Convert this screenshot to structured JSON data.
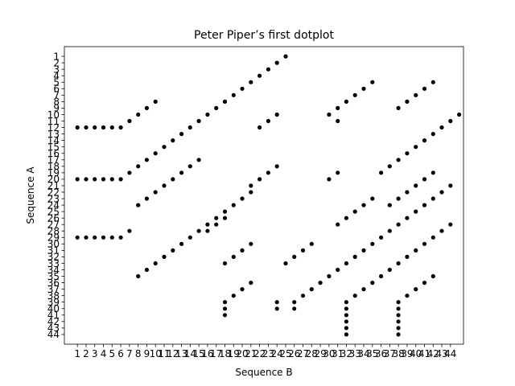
{
  "chart_data": {
    "type": "scatter",
    "title": "Peter Piper’s first dotplot",
    "xlabel": "Sequence B",
    "ylabel": "Sequence A",
    "x_ticks": [
      "1",
      "2",
      "3",
      "4",
      "5",
      "6",
      "7",
      "8",
      "9",
      "10",
      "11",
      "12",
      "13",
      "14",
      "15",
      "16",
      "17",
      "18",
      "19",
      "20",
      "21",
      "22",
      "23",
      "24",
      "25",
      "26",
      "27",
      "28",
      "29",
      "30",
      "31",
      "32",
      "33",
      "34",
      "35",
      "36",
      "37",
      "38",
      "39",
      "40",
      "41",
      "42",
      "43",
      "44"
    ],
    "y_ticks": [
      "1",
      "2",
      "3",
      "4",
      "5",
      "6",
      "7",
      "8",
      "9",
      "10",
      "11",
      "12",
      "13",
      "14",
      "15",
      "16",
      "17",
      "18",
      "19",
      "20",
      "21",
      "22",
      "23",
      "24",
      "25",
      "26",
      "27",
      "28",
      "29",
      "30",
      "31",
      "32",
      "33",
      "34",
      "35",
      "36",
      "37",
      "38",
      "39",
      "40",
      "41",
      "42",
      "43",
      "44"
    ],
    "xlim": [
      -0.5,
      45.5
    ],
    "ylim": [
      45.5,
      -0.5
    ],
    "y_inverted": true,
    "grid": false,
    "marker_color": "#000000",
    "points": [
      [
        1,
        12
      ],
      [
        2,
        12
      ],
      [
        3,
        12
      ],
      [
        4,
        12
      ],
      [
        5,
        12
      ],
      [
        6,
        12
      ],
      [
        7,
        11
      ],
      [
        8,
        10
      ],
      [
        9,
        9
      ],
      [
        10,
        8
      ],
      [
        1,
        20
      ],
      [
        2,
        20
      ],
      [
        3,
        20
      ],
      [
        4,
        20
      ],
      [
        5,
        20
      ],
      [
        6,
        20
      ],
      [
        7,
        19
      ],
      [
        8,
        18
      ],
      [
        9,
        17
      ],
      [
        10,
        16
      ],
      [
        11,
        15
      ],
      [
        12,
        14
      ],
      [
        13,
        13
      ],
      [
        14,
        12
      ],
      [
        15,
        11
      ],
      [
        16,
        10
      ],
      [
        17,
        9
      ],
      [
        18,
        8
      ],
      [
        19,
        7
      ],
      [
        20,
        6
      ],
      [
        21,
        5
      ],
      [
        22,
        4
      ],
      [
        23,
        3
      ],
      [
        24,
        2
      ],
      [
        25,
        1
      ],
      [
        1,
        29
      ],
      [
        2,
        29
      ],
      [
        3,
        29
      ],
      [
        4,
        29
      ],
      [
        5,
        29
      ],
      [
        6,
        29
      ],
      [
        7,
        28
      ],
      [
        8,
        24
      ],
      [
        9,
        23
      ],
      [
        10,
        22
      ],
      [
        11,
        21
      ],
      [
        12,
        20
      ],
      [
        13,
        19
      ],
      [
        14,
        18
      ],
      [
        15,
        17
      ],
      [
        8,
        35
      ],
      [
        9,
        34
      ],
      [
        10,
        33
      ],
      [
        11,
        32
      ],
      [
        12,
        31
      ],
      [
        13,
        30
      ],
      [
        14,
        29
      ],
      [
        15,
        28
      ],
      [
        16,
        27
      ],
      [
        17,
        26
      ],
      [
        18,
        25
      ],
      [
        19,
        24
      ],
      [
        20,
        23
      ],
      [
        21,
        22
      ],
      [
        21,
        21
      ],
      [
        22,
        20
      ],
      [
        23,
        19
      ],
      [
        24,
        18
      ],
      [
        16,
        28
      ],
      [
        17,
        27
      ],
      [
        18,
        26
      ],
      [
        18,
        33
      ],
      [
        19,
        32
      ],
      [
        20,
        31
      ],
      [
        21,
        30
      ],
      [
        18,
        39
      ],
      [
        18,
        40
      ],
      [
        18,
        41
      ],
      [
        19,
        38
      ],
      [
        20,
        37
      ],
      [
        21,
        36
      ],
      [
        22,
        12
      ],
      [
        23,
        11
      ],
      [
        24,
        10
      ],
      [
        24,
        39
      ],
      [
        24,
        40
      ],
      [
        25,
        33
      ],
      [
        26,
        32
      ],
      [
        27,
        31
      ],
      [
        28,
        30
      ],
      [
        26,
        39
      ],
      [
        26,
        40
      ],
      [
        27,
        38
      ],
      [
        28,
        37
      ],
      [
        29,
        36
      ],
      [
        30,
        35
      ],
      [
        31,
        34
      ],
      [
        32,
        33
      ],
      [
        33,
        32
      ],
      [
        34,
        31
      ],
      [
        35,
        30
      ],
      [
        36,
        29
      ],
      [
        37,
        28
      ],
      [
        38,
        27
      ],
      [
        39,
        26
      ],
      [
        40,
        25
      ],
      [
        41,
        24
      ],
      [
        42,
        23
      ],
      [
        43,
        22
      ],
      [
        44,
        21
      ],
      [
        30,
        10
      ],
      [
        31,
        9
      ],
      [
        31,
        11
      ],
      [
        32,
        8
      ],
      [
        33,
        7
      ],
      [
        34,
        6
      ],
      [
        35,
        5
      ],
      [
        30,
        20
      ],
      [
        31,
        19
      ],
      [
        31,
        27
      ],
      [
        32,
        26
      ],
      [
        33,
        25
      ],
      [
        34,
        24
      ],
      [
        35,
        23
      ],
      [
        32,
        39
      ],
      [
        32,
        40
      ],
      [
        32,
        41
      ],
      [
        32,
        42
      ],
      [
        32,
        43
      ],
      [
        32,
        44
      ],
      [
        33,
        38
      ],
      [
        34,
        37
      ],
      [
        35,
        36
      ],
      [
        36,
        35
      ],
      [
        37,
        34
      ],
      [
        38,
        33
      ],
      [
        39,
        32
      ],
      [
        40,
        31
      ],
      [
        41,
        30
      ],
      [
        42,
        29
      ],
      [
        43,
        28
      ],
      [
        44,
        27
      ],
      [
        36,
        19
      ],
      [
        37,
        18
      ],
      [
        38,
        17
      ],
      [
        39,
        16
      ],
      [
        40,
        15
      ],
      [
        41,
        14
      ],
      [
        42,
        13
      ],
      [
        43,
        12
      ],
      [
        44,
        11
      ],
      [
        45,
        10
      ],
      [
        37,
        24
      ],
      [
        38,
        23
      ],
      [
        39,
        22
      ],
      [
        40,
        21
      ],
      [
        41,
        20
      ],
      [
        42,
        19
      ],
      [
        38,
        9
      ],
      [
        39,
        8
      ],
      [
        40,
        7
      ],
      [
        41,
        6
      ],
      [
        42,
        5
      ],
      [
        38,
        39
      ],
      [
        38,
        40
      ],
      [
        38,
        41
      ],
      [
        38,
        42
      ],
      [
        38,
        43
      ],
      [
        38,
        44
      ],
      [
        39,
        38
      ],
      [
        40,
        37
      ],
      [
        41,
        36
      ],
      [
        42,
        35
      ]
    ]
  }
}
